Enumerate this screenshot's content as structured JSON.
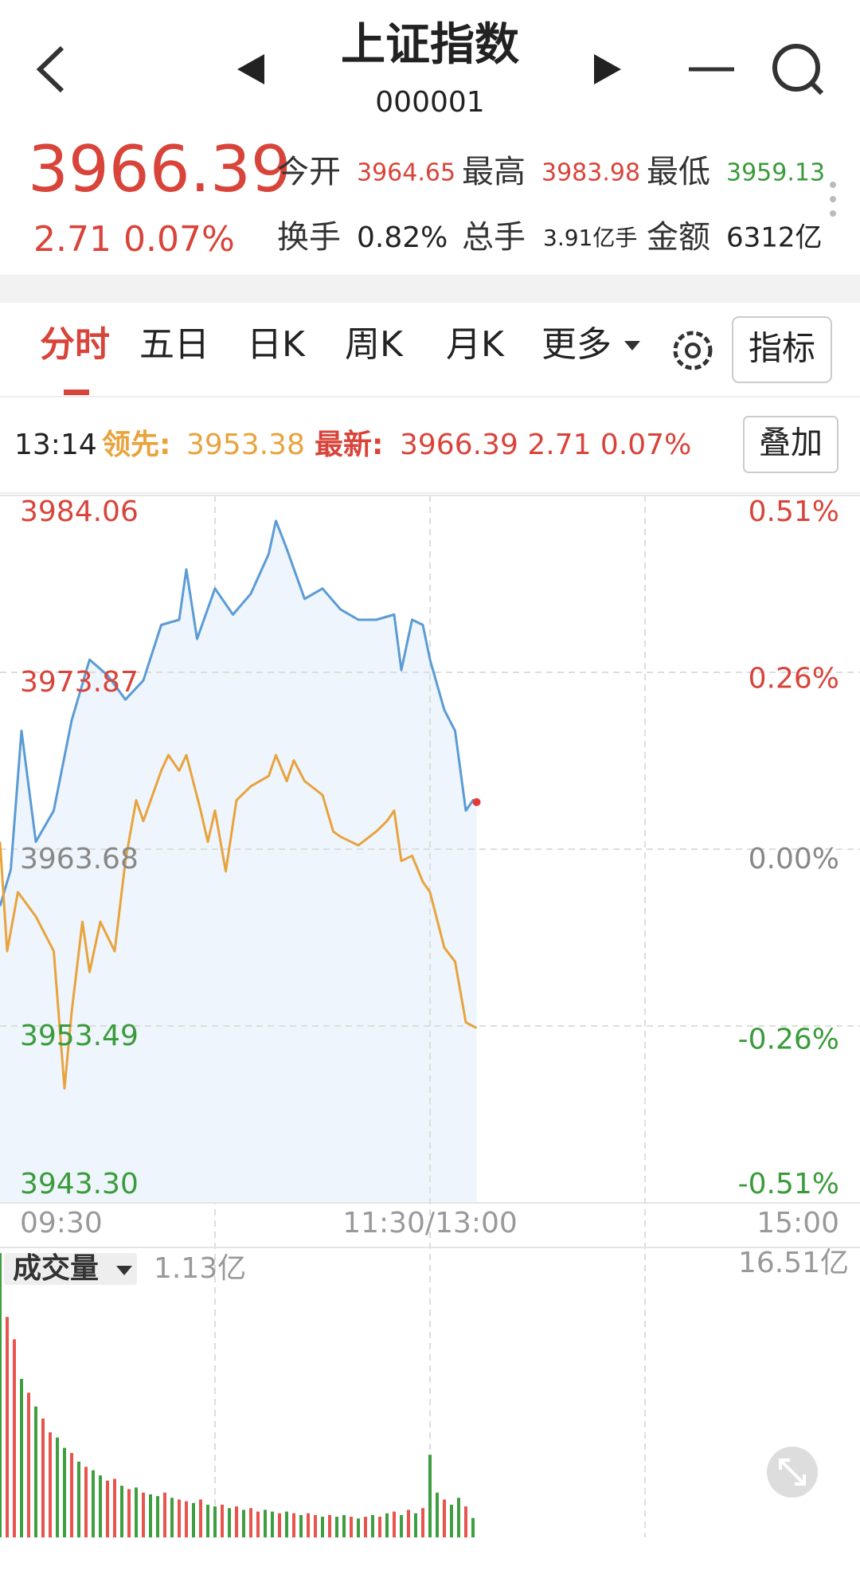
{
  "header": {
    "title": "上证指数",
    "code": "000001"
  },
  "quote": {
    "price": "3966.39",
    "change": "2.71",
    "change_pct": "0.07%",
    "stats": [
      {
        "label": "今开",
        "value": "3964.65"
      },
      {
        "label": "最高",
        "value": "3983.98"
      },
      {
        "label": "最低",
        "value": "3959.13"
      },
      {
        "label": "换手",
        "value": "0.82%"
      },
      {
        "label": "总手",
        "value": "3.91亿手"
      },
      {
        "label": "金额",
        "value": "6312亿"
      }
    ]
  },
  "tabs": [
    "分时",
    "五日",
    "日K",
    "周K",
    "月K",
    "更多"
  ],
  "buttons": {
    "indicator": "指标",
    "overlay": "叠加"
  },
  "info_bar": {
    "time": "13:14",
    "lead_label": "领先:",
    "lead_value": "3953.38",
    "latest_label": "最新:",
    "latest_value": "3966.39 2.71 0.07%"
  },
  "chart_data": [
    {
      "type": "line",
      "xlim": [
        0,
        240
      ],
      "xticks": [
        {
          "value": 0,
          "label": "09:30"
        },
        {
          "value": 120,
          "label": "11:30/13:00"
        },
        {
          "value": 240,
          "label": "15:00"
        }
      ],
      "ylim": [
        3943.3,
        3984.06
      ],
      "yticks": [
        {
          "value": 3943.3,
          "label": "3943.30"
        },
        3953.49,
        3963.68,
        3973.87,
        3984.06
      ],
      "ytick_colors": [
        "#3a9b3a",
        "#3a9b3a",
        "#888888",
        "#d9443a",
        "#d9443a"
      ],
      "y2lim": [
        -0.51,
        0.51
      ],
      "y2ticks": [
        {
          "value": -0.51,
          "label": "-0.51%"
        },
        {
          "value": -0.26,
          "label": "-0.26%"
        },
        {
          "value": 0,
          "label": "0.00%"
        },
        {
          "value": 0.26,
          "label": "0.26%"
        },
        {
          "value": 0.51,
          "label": "0.51%"
        }
      ],
      "grid": true,
      "last_marker_color": "#e53935",
      "series": [
        {
          "color": "#5b9bd5",
          "fill": "#eef5fc",
          "x": [
            0,
            3,
            6,
            10,
            15,
            20,
            25,
            30,
            35,
            40,
            45,
            50,
            52,
            55,
            60,
            65,
            70,
            75,
            77,
            80,
            85,
            90,
            95,
            100,
            105,
            110,
            112,
            115,
            118,
            120,
            124,
            127,
            130,
            132,
            133
          ],
          "values": [
            3960.4,
            3962.5,
            3970.5,
            3964.1,
            3965.9,
            3971.1,
            3974.6,
            3973.7,
            3972.3,
            3973.4,
            3976.6,
            3976.9,
            3979.8,
            3975.8,
            3978.7,
            3977.2,
            3978.4,
            3980.7,
            3982.6,
            3981.0,
            3978.1,
            3978.7,
            3977.5,
            3976.9,
            3976.9,
            3977.2,
            3974.0,
            3976.9,
            3976.6,
            3974.6,
            3971.7,
            3970.5,
            3965.9,
            3966.5,
            3966.39
          ]
        },
        {
          "color": "#e8a33d",
          "x": [
            0,
            2,
            5,
            10,
            15,
            18,
            20,
            23,
            25,
            28,
            32,
            35,
            38,
            40,
            45,
            47,
            50,
            52,
            56,
            58,
            60,
            63,
            66,
            70,
            75,
            77,
            80,
            82,
            85,
            90,
            93,
            95,
            100,
            105,
            108,
            110,
            112,
            115,
            118,
            120,
            124,
            127,
            130,
            133
          ],
          "values": [
            3964.1,
            3957.8,
            3961.2,
            3959.8,
            3957.8,
            3949.9,
            3954.3,
            3959.5,
            3956.6,
            3959.5,
            3957.8,
            3963.0,
            3966.5,
            3965.3,
            3968.2,
            3969.1,
            3968.2,
            3969.1,
            3965.9,
            3964.1,
            3965.9,
            3962.4,
            3966.5,
            3967.3,
            3967.9,
            3969.1,
            3967.6,
            3968.8,
            3967.6,
            3966.8,
            3964.7,
            3964.4,
            3963.9,
            3964.7,
            3965.3,
            3965.9,
            3963.0,
            3963.3,
            3961.8,
            3961.2,
            3958.0,
            3957.2,
            3953.7,
            3953.38
          ]
        }
      ]
    },
    {
      "type": "bar",
      "title": "成交量",
      "current": "1.13亿",
      "xlim": [
        0,
        240
      ],
      "ylim": [
        0,
        16.51
      ],
      "yticks": [
        {
          "value": 16.51,
          "label": "16.51亿"
        }
      ],
      "x": [
        0,
        2,
        4,
        6,
        8,
        10,
        12,
        14,
        16,
        18,
        20,
        22,
        24,
        26,
        28,
        30,
        32,
        34,
        36,
        38,
        40,
        42,
        44,
        46,
        48,
        50,
        52,
        54,
        56,
        58,
        60,
        62,
        64,
        66,
        68,
        70,
        72,
        74,
        76,
        78,
        80,
        82,
        84,
        86,
        88,
        90,
        92,
        94,
        96,
        98,
        100,
        102,
        104,
        106,
        108,
        110,
        112,
        114,
        116,
        118,
        120,
        122,
        124,
        126,
        128,
        130,
        132
      ],
      "values": [
        16.51,
        12.8,
        11.5,
        9.2,
        8.4,
        7.6,
        6.9,
        6.1,
        5.8,
        5.2,
        4.9,
        4.4,
        4.1,
        3.9,
        3.6,
        3.3,
        3.4,
        3.0,
        2.8,
        2.9,
        2.6,
        2.5,
        2.4,
        2.6,
        2.3,
        2.2,
        2.1,
        2.0,
        2.2,
        1.9,
        1.8,
        1.9,
        1.7,
        1.8,
        1.6,
        1.7,
        1.5,
        1.6,
        1.5,
        1.4,
        1.5,
        1.4,
        1.3,
        1.4,
        1.3,
        1.2,
        1.3,
        1.2,
        1.3,
        1.2,
        1.1,
        1.2,
        1.3,
        1.2,
        1.4,
        1.5,
        1.3,
        1.6,
        1.4,
        1.7,
        4.8,
        2.6,
        2.2,
        1.9,
        2.3,
        1.8,
        1.13
      ],
      "colors": [
        "#3f9e3f",
        "#e8544e",
        "#e8544e",
        "#3f9e3f",
        "#e8544e",
        "#3f9e3f",
        "#e8544e",
        "#e8544e",
        "#3f9e3f",
        "#3f9e3f",
        "#e8544e",
        "#3f9e3f",
        "#e8544e",
        "#3f9e3f",
        "#3f9e3f",
        "#e8544e",
        "#e8544e",
        "#3f9e3f",
        "#e8544e",
        "#3f9e3f",
        "#e8544e",
        "#3f9e3f",
        "#3f9e3f",
        "#e8544e",
        "#3f9e3f",
        "#e8544e",
        "#e8544e",
        "#3f9e3f",
        "#e8544e",
        "#3f9e3f",
        "#3f9e3f",
        "#e8544e",
        "#3f9e3f",
        "#e8544e",
        "#3f9e3f",
        "#e8544e",
        "#e8544e",
        "#3f9e3f",
        "#3f9e3f",
        "#e8544e",
        "#3f9e3f",
        "#e8544e",
        "#3f9e3f",
        "#e8544e",
        "#e8544e",
        "#3f9e3f",
        "#e8544e",
        "#3f9e3f",
        "#3f9e3f",
        "#e8544e",
        "#3f9e3f",
        "#e8544e",
        "#3f9e3f",
        "#e8544e",
        "#3f9e3f",
        "#e8544e",
        "#3f9e3f",
        "#e8544e",
        "#3f9e3f",
        "#e8544e",
        "#3f9e3f",
        "#3f9e3f",
        "#e8544e",
        "#3f9e3f",
        "#3f9e3f",
        "#e8544e",
        "#3f9e3f"
      ]
    }
  ]
}
